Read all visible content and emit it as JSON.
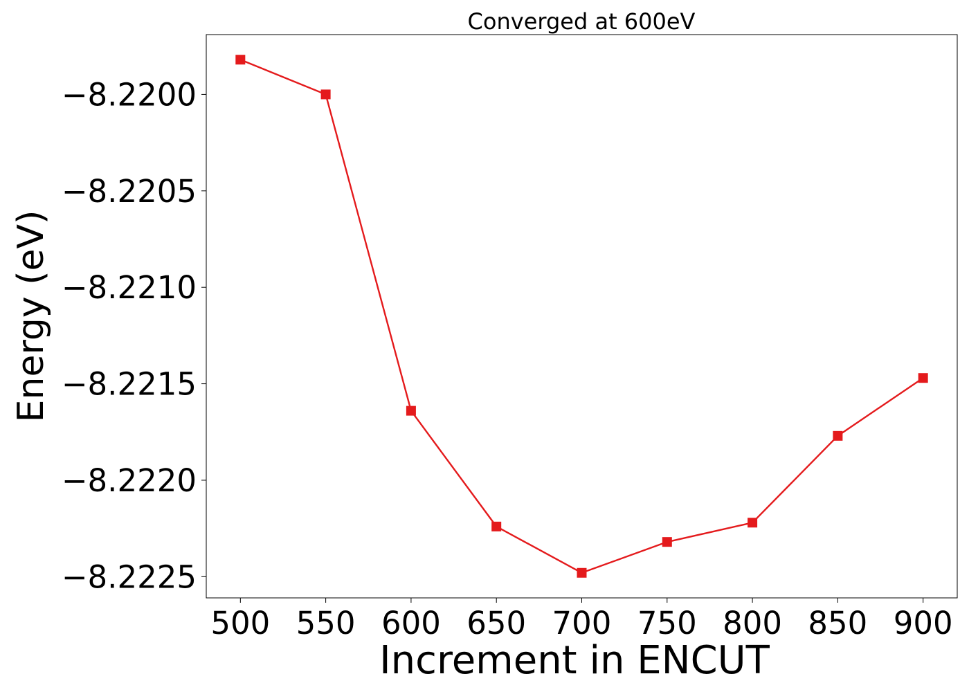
{
  "chart_data": {
    "type": "line",
    "title": "Converged at 600eV",
    "xlabel": "Increment in ENCUT",
    "ylabel": "Energy (eV)",
    "x": [
      500,
      550,
      600,
      650,
      700,
      750,
      800,
      850,
      900
    ],
    "series": [
      {
        "values": [
          -8.21982,
          -8.22,
          -8.22164,
          -8.22224,
          -8.22248,
          -8.22232,
          -8.22222,
          -8.22177,
          -8.22147
        ],
        "color": "#e41a1c",
        "marker": "square"
      }
    ],
    "xticks": [
      500,
      550,
      600,
      650,
      700,
      750,
      800,
      850,
      900
    ],
    "xtick_labels": [
      "500",
      "550",
      "600",
      "650",
      "700",
      "750",
      "800",
      "850",
      "900"
    ],
    "yticks": [
      -8.22,
      -8.2205,
      -8.221,
      -8.2215,
      -8.222,
      -8.2225
    ],
    "ytick_labels": [
      "−8.2200",
      "−8.2205",
      "−8.2210",
      "−8.2215",
      "−8.2220",
      "−8.2225"
    ],
    "xlim": [
      480,
      920
    ],
    "ylim": [
      -8.22261,
      -8.21969
    ],
    "grid": false,
    "legend": false
  }
}
